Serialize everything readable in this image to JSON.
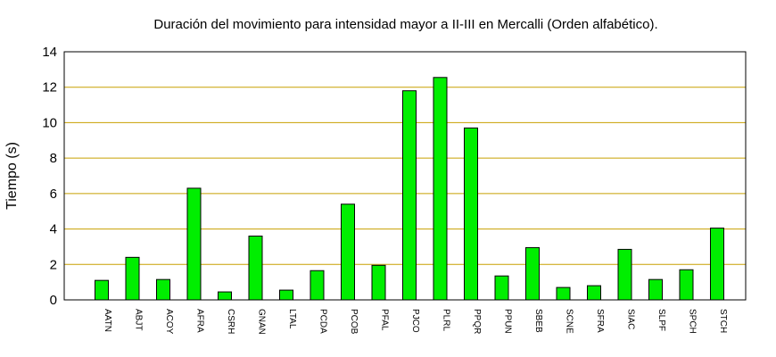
{
  "chart_data": {
    "type": "bar",
    "title": "Duración del movimiento para intensidad mayor a II-III en Mercalli (Orden alfabético).",
    "xlabel": "",
    "ylabel": "Tiempo (s)",
    "ylim": [
      0,
      14
    ],
    "yticks": [
      0,
      2,
      4,
      6,
      8,
      10,
      12,
      14
    ],
    "grid": true,
    "categories": [
      "AATN",
      "ABJT",
      "ACOY",
      "AFRA",
      "CSRH",
      "GNAN",
      "LTAL",
      "PCDA",
      "PCOB",
      "PFAL",
      "PJCO",
      "PLRL",
      "PPQR",
      "PPUN",
      "SBEB",
      "SCNE",
      "SFRA",
      "SIAC",
      "SLPF",
      "SPCH",
      "STCH"
    ],
    "values": [
      1.1,
      2.4,
      1.15,
      6.3,
      0.45,
      3.6,
      0.55,
      1.65,
      5.4,
      1.95,
      11.8,
      12.55,
      9.7,
      1.35,
      2.95,
      0.7,
      0.8,
      2.85,
      1.15,
      1.7,
      4.05
    ],
    "colors": {
      "bar": "#00ee00",
      "bar_stroke": "#000000",
      "grid": "#c8a000"
    }
  }
}
